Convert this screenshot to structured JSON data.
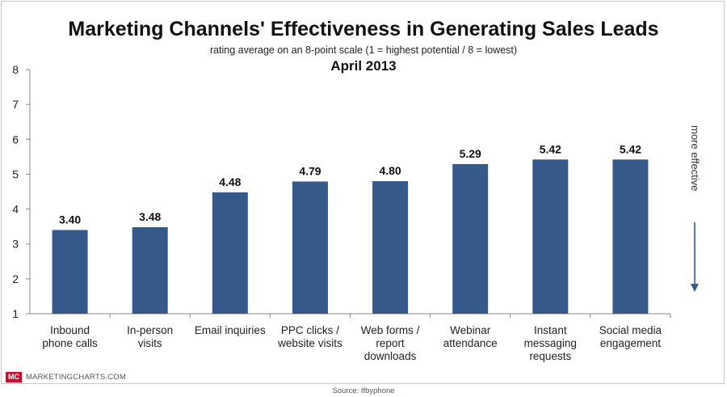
{
  "chart_data": {
    "type": "bar",
    "title": "Marketing Channels' Effectiveness in Generating Sales Leads",
    "subtitle": "rating average on an 8-point scale (1 = highest potential / 8 = lowest)",
    "date": "April 2013",
    "categories": [
      [
        "Inbound",
        "phone calls"
      ],
      [
        "In-person",
        "visits"
      ],
      [
        "Email inquiries"
      ],
      [
        "PPC clicks /",
        "website visits"
      ],
      [
        "Web forms /",
        "report",
        "downloads"
      ],
      [
        "Webinar",
        "attendance"
      ],
      [
        "Instant",
        "messaging",
        "requests"
      ],
      [
        "Social media",
        "engagement"
      ]
    ],
    "values": [
      3.4,
      3.48,
      4.48,
      4.79,
      4.8,
      5.29,
      5.42,
      5.42
    ],
    "value_labels": [
      "3.40",
      "3.48",
      "4.48",
      "4.79",
      "4.80",
      "5.29",
      "5.42",
      "5.42"
    ],
    "ylim": [
      1,
      8
    ],
    "yticks": [
      "1",
      "2",
      "3",
      "4",
      "5",
      "6",
      "7",
      "8"
    ],
    "grid": false,
    "bar_color": "#355a8a",
    "side_annotation": "more effective",
    "side_arrow": "down"
  },
  "footer": {
    "logo": "MC",
    "site": "MARKETINGCHARTS.COM",
    "source": "Source: Ifbyphone"
  }
}
